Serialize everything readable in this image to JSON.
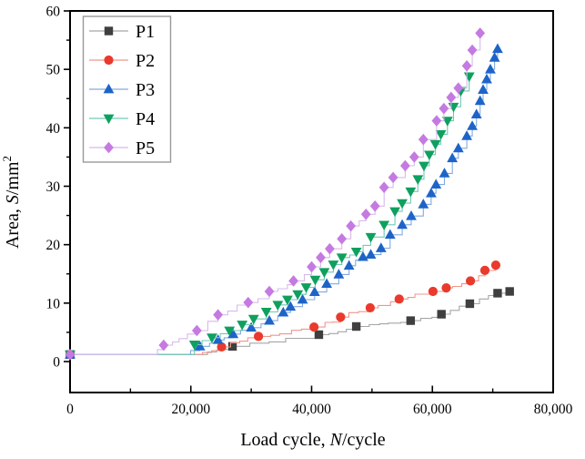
{
  "figure": {
    "background": "#ffffff",
    "frame_color": "#000000",
    "text_color": "#000000"
  },
  "chart_data": {
    "type": "line",
    "title": "",
    "xlabel": "Load cycle, N/cycle",
    "xlabel_parts": [
      "Load cycle, ",
      "N",
      "/cycle"
    ],
    "ylabel": "Area, S/mm2",
    "ylabel_parts": [
      "Area, ",
      "S",
      "/mm"
    ],
    "ylabel_superscript": "2",
    "xlim": [
      0,
      80000
    ],
    "ylim": [
      -5.3,
      60
    ],
    "grid": false,
    "x_major_ticks": [
      {
        "value": 0,
        "label": "0"
      },
      {
        "value": 20000,
        "label": "20,000"
      },
      {
        "value": 40000,
        "label": "40,000"
      },
      {
        "value": 60000,
        "label": "60,000"
      },
      {
        "value": 80000,
        "label": "80,000"
      }
    ],
    "x_minor_ticks": [
      10000,
      30000,
      50000,
      70000
    ],
    "y_major_ticks": [
      {
        "value": 0,
        "label": "0"
      },
      {
        "value": 10,
        "label": "10"
      },
      {
        "value": 20,
        "label": "20"
      },
      {
        "value": 30,
        "label": "30"
      },
      {
        "value": 40,
        "label": "40"
      },
      {
        "value": 50,
        "label": "50"
      },
      {
        "value": 60,
        "label": "60"
      }
    ],
    "y_minor_ticks": [
      5,
      15,
      25,
      35,
      45,
      55
    ],
    "legend": {
      "position": "top-left",
      "border_color": "#999999",
      "background": "#ffffff"
    },
    "series": [
      {
        "name": "P1",
        "marker": "square",
        "marker_color": "#3f3f3f",
        "line_color": "#a6a6a6",
        "rise_start": 21000,
        "points": [
          [
            0,
            1.2
          ],
          [
            26900,
            2.6
          ],
          [
            41200,
            4.6
          ],
          [
            47400,
            6.0
          ],
          [
            56400,
            7.0
          ],
          [
            61500,
            8.1
          ],
          [
            66200,
            9.9
          ],
          [
            70800,
            11.7
          ],
          [
            72800,
            12.0
          ]
        ]
      },
      {
        "name": "P2",
        "marker": "circle",
        "marker_color": "#e93a2d",
        "line_color": "#f0968e",
        "rise_start": 20500,
        "points": [
          [
            0,
            1.2
          ],
          [
            25100,
            2.5
          ],
          [
            31200,
            4.3
          ],
          [
            40400,
            5.9
          ],
          [
            44800,
            7.6
          ],
          [
            49700,
            9.2
          ],
          [
            54500,
            10.7
          ],
          [
            60100,
            12.0
          ],
          [
            62300,
            12.6
          ],
          [
            66300,
            13.8
          ],
          [
            68700,
            15.6
          ],
          [
            70500,
            16.5
          ]
        ]
      },
      {
        "name": "P3",
        "marker": "triangle-up",
        "marker_color": "#1e64c8",
        "line_color": "#82aadf",
        "rise_start": 19000,
        "points": [
          [
            0,
            1.2
          ],
          [
            21500,
            2.6
          ],
          [
            24500,
            3.7
          ],
          [
            27000,
            4.7
          ],
          [
            30000,
            5.8
          ],
          [
            33000,
            7.0
          ],
          [
            35300,
            8.4
          ],
          [
            36500,
            9.4
          ],
          [
            38500,
            10.6
          ],
          [
            40500,
            11.9
          ],
          [
            42500,
            13.3
          ],
          [
            44500,
            14.9
          ],
          [
            46200,
            16.4
          ],
          [
            48500,
            17.9
          ],
          [
            49800,
            18.3
          ],
          [
            51500,
            19.4
          ],
          [
            53000,
            21.7
          ],
          [
            55000,
            23.4
          ],
          [
            56500,
            24.9
          ],
          [
            58500,
            26.9
          ],
          [
            59800,
            28.8
          ],
          [
            60600,
            30.3
          ],
          [
            62000,
            32.2
          ],
          [
            63300,
            34.8
          ],
          [
            64300,
            36.5
          ],
          [
            65700,
            38.6
          ],
          [
            66600,
            40.3
          ],
          [
            67300,
            42.3
          ],
          [
            67900,
            44.6
          ],
          [
            68400,
            46.5
          ],
          [
            69000,
            48.3
          ],
          [
            69600,
            50.0
          ],
          [
            70300,
            52.0
          ],
          [
            70800,
            53.5
          ]
        ]
      },
      {
        "name": "P4",
        "marker": "triangle-down",
        "marker_color": "#0fa05f",
        "line_color": "#72c9b7",
        "rise_start": 18500,
        "points": [
          [
            0,
            1.2
          ],
          [
            20600,
            2.9
          ],
          [
            23500,
            4.1
          ],
          [
            26400,
            5.3
          ],
          [
            28500,
            6.3
          ],
          [
            30400,
            7.3
          ],
          [
            32500,
            8.5
          ],
          [
            34400,
            9.7
          ],
          [
            36000,
            10.6
          ],
          [
            37700,
            11.5
          ],
          [
            39100,
            12.7
          ],
          [
            40600,
            14.0
          ],
          [
            42100,
            15.3
          ],
          [
            43600,
            16.6
          ],
          [
            45000,
            17.8
          ],
          [
            47400,
            18.8
          ],
          [
            49800,
            21.3
          ],
          [
            52000,
            23.4
          ],
          [
            53800,
            25.7
          ],
          [
            55000,
            27.1
          ],
          [
            56400,
            29.1
          ],
          [
            57600,
            31.2
          ],
          [
            58600,
            33.5
          ],
          [
            59500,
            35.4
          ],
          [
            60500,
            37.2
          ],
          [
            61400,
            38.9
          ],
          [
            62500,
            41.2
          ],
          [
            63500,
            43.6
          ],
          [
            64700,
            46.3
          ],
          [
            66100,
            48.8
          ]
        ]
      },
      {
        "name": "P5",
        "marker": "diamond",
        "marker_color": "#c57ae1",
        "line_color": "#d9b9ec",
        "rise_start": 13000,
        "points": [
          [
            0,
            1.2
          ],
          [
            15500,
            2.8
          ],
          [
            21000,
            5.3
          ],
          [
            24500,
            8.0
          ],
          [
            29500,
            10.1
          ],
          [
            33000,
            12.0
          ],
          [
            37000,
            13.8
          ],
          [
            40000,
            16.2
          ],
          [
            41500,
            17.8
          ],
          [
            43000,
            19.3
          ],
          [
            45000,
            21.0
          ],
          [
            46500,
            23.2
          ],
          [
            49000,
            25.2
          ],
          [
            50500,
            26.6
          ],
          [
            52000,
            29.8
          ],
          [
            53500,
            31.5
          ],
          [
            55500,
            33.5
          ],
          [
            57000,
            35.0
          ],
          [
            58500,
            38.0
          ],
          [
            60700,
            41.2
          ],
          [
            61900,
            43.3
          ],
          [
            63100,
            45.2
          ],
          [
            64300,
            46.8
          ],
          [
            65700,
            50.6
          ],
          [
            66600,
            53.3
          ],
          [
            67900,
            56.2
          ]
        ]
      }
    ]
  }
}
